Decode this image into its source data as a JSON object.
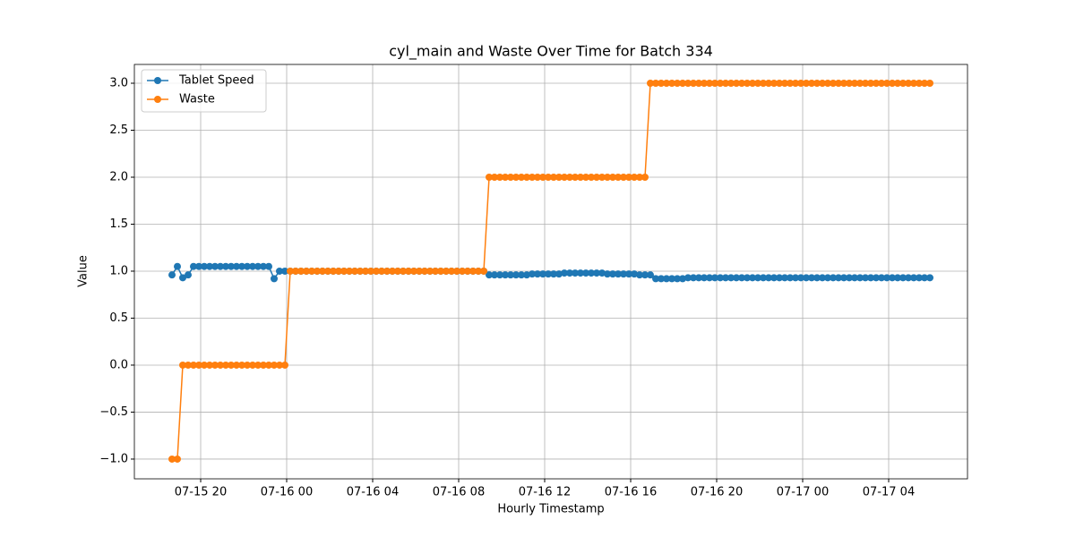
{
  "chart_data": {
    "type": "line",
    "title": "cyl_main and Waste Over Time for Batch 334",
    "xlabel": "Hourly Timestamp",
    "ylabel": "Value",
    "x": [
      "07-15 18:40",
      "07-15 18:55",
      "07-15 19:10",
      "07-15 19:25",
      "07-15 19:40",
      "07-15 19:55",
      "07-15 20:10",
      "07-15 20:25",
      "07-15 20:40",
      "07-15 20:55",
      "07-15 21:10",
      "07-15 21:25",
      "07-15 21:40",
      "07-15 21:55",
      "07-15 22:10",
      "07-15 22:25",
      "07-15 22:40",
      "07-15 22:55",
      "07-15 23:10",
      "07-15 23:25",
      "07-15 23:40",
      "07-15 23:55",
      "07-16 00:10",
      "07-16 00:25",
      "07-16 00:40",
      "07-16 00:55",
      "07-16 01:10",
      "07-16 01:25",
      "07-16 01:40",
      "07-16 01:55",
      "07-16 02:10",
      "07-16 02:25",
      "07-16 02:40",
      "07-16 02:55",
      "07-16 03:10",
      "07-16 03:25",
      "07-16 03:40",
      "07-16 03:55",
      "07-16 04:10",
      "07-16 04:25",
      "07-16 04:40",
      "07-16 04:55",
      "07-16 05:10",
      "07-16 05:25",
      "07-16 05:40",
      "07-16 05:55",
      "07-16 06:10",
      "07-16 06:25",
      "07-16 06:40",
      "07-16 06:55",
      "07-16 07:10",
      "07-16 07:25",
      "07-16 07:40",
      "07-16 07:55",
      "07-16 08:10",
      "07-16 08:25",
      "07-16 08:40",
      "07-16 08:55",
      "07-16 09:10",
      "07-16 09:25",
      "07-16 09:40",
      "07-16 09:55",
      "07-16 10:10",
      "07-16 10:25",
      "07-16 10:40",
      "07-16 10:55",
      "07-16 11:10",
      "07-16 11:25",
      "07-16 11:40",
      "07-16 11:55",
      "07-16 12:10",
      "07-16 12:25",
      "07-16 12:40",
      "07-16 12:55",
      "07-16 13:10",
      "07-16 13:25",
      "07-16 13:40",
      "07-16 13:55",
      "07-16 14:10",
      "07-16 14:25",
      "07-16 14:40",
      "07-16 14:55",
      "07-16 15:10",
      "07-16 15:25",
      "07-16 15:40",
      "07-16 15:55",
      "07-16 16:10",
      "07-16 16:25",
      "07-16 16:40",
      "07-16 16:55",
      "07-16 17:10",
      "07-16 17:25",
      "07-16 17:40",
      "07-16 17:55",
      "07-16 18:10",
      "07-16 18:25",
      "07-16 18:40",
      "07-16 18:55",
      "07-16 19:10",
      "07-16 19:25",
      "07-16 19:40",
      "07-16 19:55",
      "07-16 20:10",
      "07-16 20:25",
      "07-16 20:40",
      "07-16 20:55",
      "07-16 21:10",
      "07-16 21:25",
      "07-16 21:40",
      "07-16 21:55",
      "07-16 22:10",
      "07-16 22:25",
      "07-16 22:40",
      "07-16 22:55",
      "07-16 23:10",
      "07-16 23:25",
      "07-16 23:40",
      "07-16 23:55",
      "07-17 00:10",
      "07-17 00:25",
      "07-17 00:40",
      "07-17 00:55",
      "07-17 01:10",
      "07-17 01:25",
      "07-17 01:40",
      "07-17 01:55",
      "07-17 02:10",
      "07-17 02:25",
      "07-17 02:40",
      "07-17 02:55",
      "07-17 03:10",
      "07-17 03:25",
      "07-17 03:40",
      "07-17 03:55",
      "07-17 04:10",
      "07-17 04:25",
      "07-17 04:40",
      "07-17 04:55",
      "07-17 05:10",
      "07-17 05:25",
      "07-17 05:40",
      "07-17 05:55"
    ],
    "series": [
      {
        "name": "Tablet Speed",
        "color": "#1f77b4",
        "values": [
          0.96,
          1.05,
          0.93,
          0.96,
          1.05,
          1.05,
          1.05,
          1.05,
          1.05,
          1.05,
          1.05,
          1.05,
          1.05,
          1.05,
          1.05,
          1.05,
          1.05,
          1.05,
          1.05,
          0.92,
          1.0,
          1.0,
          1.0,
          1.0,
          1.0,
          1.0,
          1.0,
          1.0,
          1.0,
          1.0,
          1.0,
          1.0,
          1.0,
          1.0,
          1.0,
          1.0,
          1.0,
          1.0,
          1.0,
          1.0,
          1.0,
          1.0,
          1.0,
          1.0,
          1.0,
          1.0,
          1.0,
          1.0,
          1.0,
          1.0,
          1.0,
          1.0,
          1.0,
          1.0,
          1.0,
          1.0,
          1.0,
          1.0,
          1.0,
          0.96,
          0.96,
          0.96,
          0.96,
          0.96,
          0.96,
          0.96,
          0.96,
          0.97,
          0.97,
          0.97,
          0.97,
          0.97,
          0.97,
          0.98,
          0.98,
          0.98,
          0.98,
          0.98,
          0.98,
          0.98,
          0.98,
          0.97,
          0.97,
          0.97,
          0.97,
          0.97,
          0.97,
          0.96,
          0.96,
          0.96,
          0.92,
          0.92,
          0.92,
          0.92,
          0.92,
          0.92,
          0.93,
          0.93,
          0.93,
          0.93,
          0.93,
          0.93,
          0.93,
          0.93,
          0.93,
          0.93,
          0.93,
          0.93,
          0.93,
          0.93,
          0.93,
          0.93,
          0.93,
          0.93,
          0.93,
          0.93,
          0.93,
          0.93,
          0.93,
          0.93,
          0.93,
          0.93,
          0.93,
          0.93,
          0.93,
          0.93,
          0.93,
          0.93,
          0.93,
          0.93,
          0.93,
          0.93,
          0.93,
          0.93,
          0.93,
          0.93,
          0.93,
          0.93,
          0.93,
          0.93,
          0.93,
          0.93
        ]
      },
      {
        "name": "Waste",
        "color": "#ff7f0e",
        "values": [
          -1,
          -1,
          0,
          0,
          0,
          0,
          0,
          0,
          0,
          0,
          0,
          0,
          0,
          0,
          0,
          0,
          0,
          0,
          0,
          0,
          0,
          0,
          1,
          1,
          1,
          1,
          1,
          1,
          1,
          1,
          1,
          1,
          1,
          1,
          1,
          1,
          1,
          1,
          1,
          1,
          1,
          1,
          1,
          1,
          1,
          1,
          1,
          1,
          1,
          1,
          1,
          1,
          1,
          1,
          1,
          1,
          1,
          1,
          1,
          2,
          2,
          2,
          2,
          2,
          2,
          2,
          2,
          2,
          2,
          2,
          2,
          2,
          2,
          2,
          2,
          2,
          2,
          2,
          2,
          2,
          2,
          2,
          2,
          2,
          2,
          2,
          2,
          2,
          2,
          3,
          3,
          3,
          3,
          3,
          3,
          3,
          3,
          3,
          3,
          3,
          3,
          3,
          3,
          3,
          3,
          3,
          3,
          3,
          3,
          3,
          3,
          3,
          3,
          3,
          3,
          3,
          3,
          3,
          3,
          3,
          3,
          3,
          3,
          3,
          3,
          3,
          3,
          3,
          3,
          3,
          3,
          3,
          3,
          3,
          3,
          3,
          3,
          3,
          3,
          3,
          3,
          3
        ]
      }
    ],
    "xlim": [
      "07-15 16:55",
      "07-17 07:40"
    ],
    "xticks": [
      "07-15 20",
      "07-16 00",
      "07-16 04",
      "07-16 08",
      "07-16 12",
      "07-16 16",
      "07-16 20",
      "07-17 00",
      "07-17 04"
    ],
    "ylim": [
      -1.21,
      3.2
    ],
    "yticks": [
      {
        "value": -1,
        "label": "−1.0"
      },
      {
        "value": -0.5,
        "label": "−0.5"
      },
      {
        "value": 0,
        "label": "0.0"
      },
      {
        "value": 0.5,
        "label": "0.5"
      },
      {
        "value": 1,
        "label": "1.0"
      },
      {
        "value": 1.5,
        "label": "1.5"
      },
      {
        "value": 2,
        "label": "2.0"
      },
      {
        "value": 2.5,
        "label": "2.5"
      },
      {
        "value": 3,
        "label": "3.0"
      }
    ],
    "grid": true,
    "legend": "upper-left"
  }
}
